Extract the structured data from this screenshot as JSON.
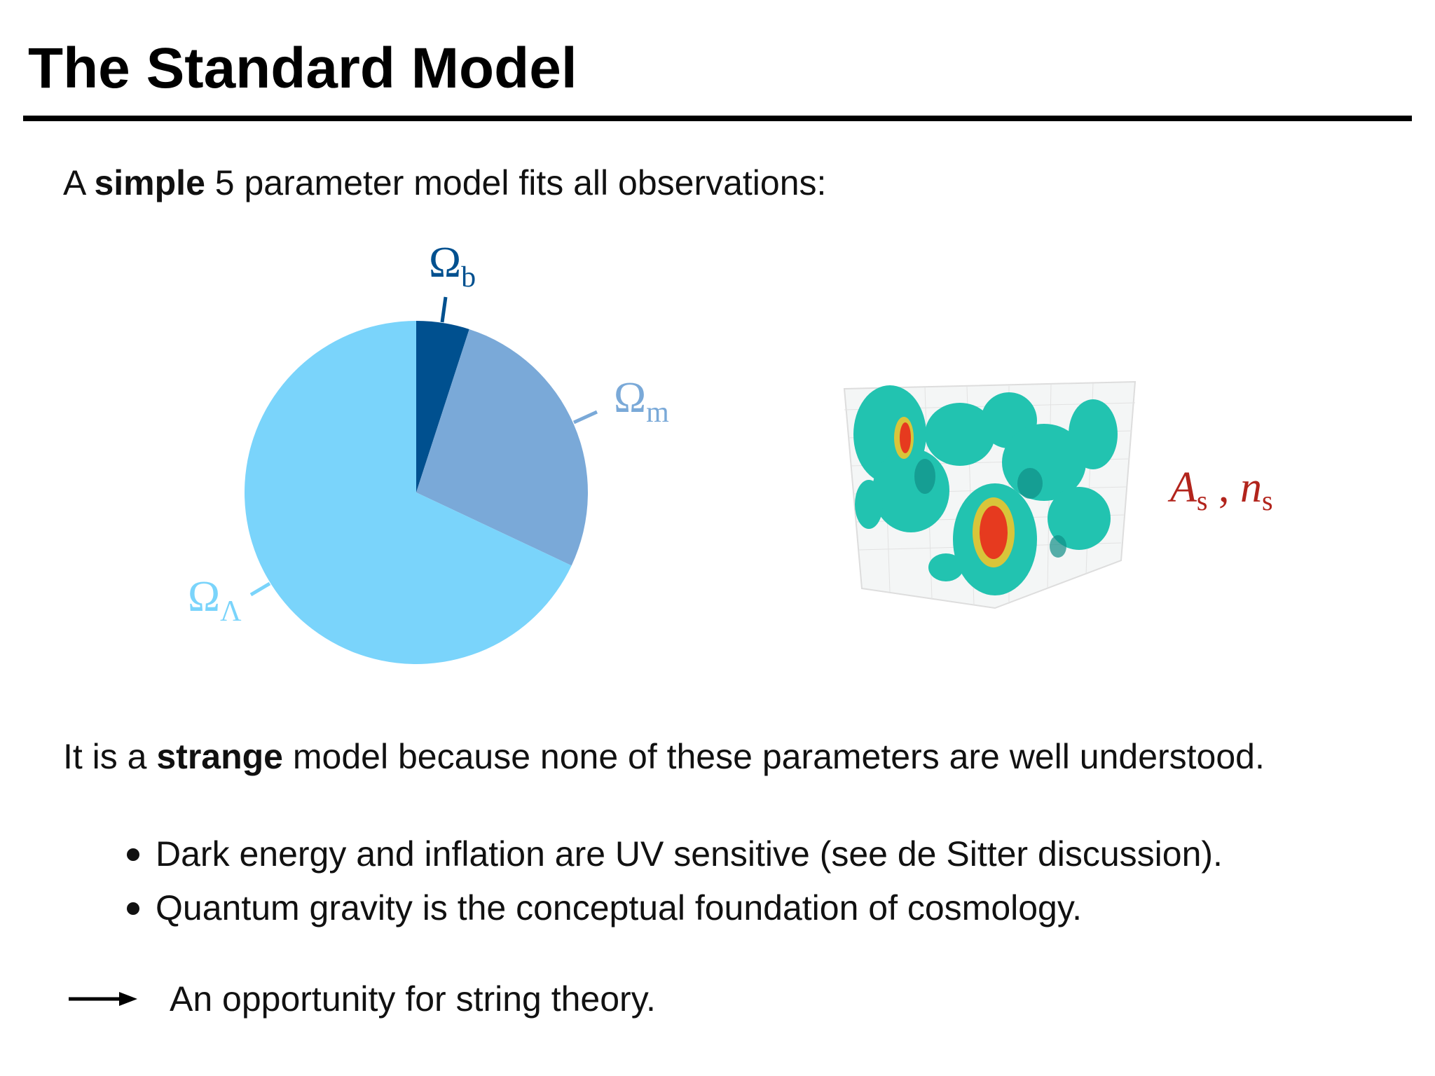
{
  "header": {
    "title": "The Standard Model"
  },
  "intro": {
    "before": "A ",
    "bold": "simple",
    "after": " 5 parameter model fits all observations:"
  },
  "chart_data": {
    "type": "pie",
    "categories": [
      {
        "symbol": "Ω",
        "sub": "b"
      },
      {
        "symbol": "Ω",
        "sub": "m"
      },
      {
        "symbol": "Ω",
        "sub": "Λ"
      }
    ],
    "values": [
      5,
      27,
      68
    ],
    "colors": [
      "#00508f",
      "#7aa9d8",
      "#7ad4fb"
    ]
  },
  "perturbations": {
    "a": "A",
    "a_sub": "s",
    "sep": " , ",
    "n": "n",
    "n_sub": "s"
  },
  "statement": {
    "before": "It is a ",
    "bold": "strange",
    "after": " model because none of these parameters are well understood."
  },
  "bullets": [
    "Dark energy and inflation are UV sensitive (see de Sitter discussion).",
    "Quantum gravity is the conceptual foundation of cosmology."
  ],
  "conclusion": "An opportunity for string theory."
}
